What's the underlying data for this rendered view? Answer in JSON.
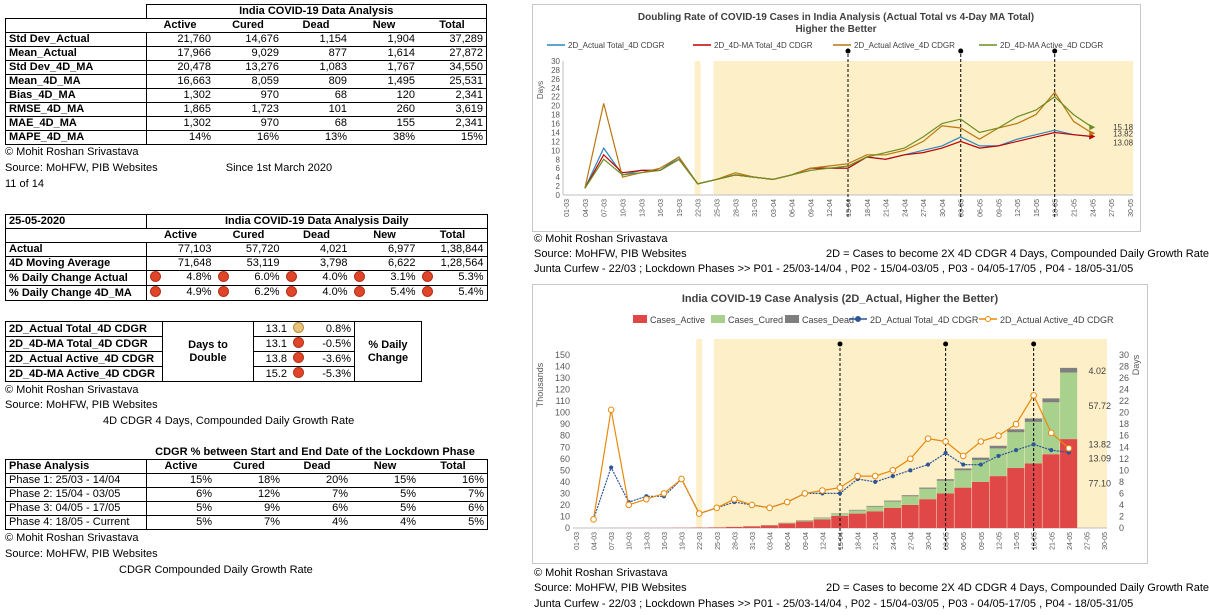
{
  "table1": {
    "title": "India COVID-19 Data Analysis",
    "headers": [
      "Active",
      "Cured",
      "Dead",
      "New",
      "Total"
    ],
    "rows": [
      {
        "label": "Std Dev_Actual",
        "values": [
          "21,760",
          "14,676",
          "1,154",
          "1,904",
          "37,289"
        ]
      },
      {
        "label": "Mean_Actual",
        "values": [
          "17,966",
          "9,029",
          "877",
          "1,614",
          "27,872"
        ]
      },
      {
        "label": "Std Dev_4D_MA",
        "values": [
          "20,478",
          "13,276",
          "1,083",
          "1,767",
          "34,550"
        ]
      },
      {
        "label": "Mean_4D_MA",
        "values": [
          "16,663",
          "8,059",
          "809",
          "1,495",
          "25,531"
        ]
      },
      {
        "label": "Bias_4D_MA",
        "values": [
          "1,302",
          "970",
          "68",
          "120",
          "2,341"
        ]
      },
      {
        "label": "RMSE_4D_MA",
        "values": [
          "1,865",
          "1,723",
          "101",
          "260",
          "3,619"
        ]
      },
      {
        "label": "MAE_4D_MA",
        "values": [
          "1,302",
          "970",
          "68",
          "155",
          "2,341"
        ]
      },
      {
        "label": "MAPE_4D_MA",
        "values": [
          "14%",
          "16%",
          "13%",
          "38%",
          "15%"
        ]
      }
    ],
    "credit": "© Mohit Roshan Srivastava",
    "source": "Source: MoHFW, PIB Websites",
    "since": "Since 1st March 2020",
    "page": "11 of 14"
  },
  "table2": {
    "date": "25-05-2020",
    "title": "India COVID-19 Data Analysis Daily",
    "headers": [
      "Active",
      "Cured",
      "Dead",
      "New",
      "Total"
    ],
    "rows": [
      {
        "label": "Actual",
        "values": [
          "77,103",
          "57,720",
          "4,021",
          "6,977",
          "1,38,844"
        ]
      },
      {
        "label": "4D Moving Average",
        "values": [
          "71,648",
          "53,119",
          "3,798",
          "6,622",
          "1,28,564"
        ]
      },
      {
        "label": "% Daily Change Actual",
        "values": [
          "4.8%",
          "6.0%",
          "4.0%",
          "3.1%",
          "5.3%"
        ]
      },
      {
        "label": "% Daily Change 4D_MA",
        "values": [
          "4.9%",
          "6.2%",
          "4.0%",
          "5.4%",
          "5.4%"
        ]
      }
    ]
  },
  "table3": {
    "rows": [
      {
        "label": "2D_Actual Total_4D CDGR",
        "value": "13.1",
        "change": "0.8%",
        "indicator": "tan"
      },
      {
        "label": "2D_4D-MA Total_4D CDGR",
        "value": "13.1",
        "change": "-0.5%",
        "indicator": "red"
      },
      {
        "label": "2D_Actual Active_4D CDGR",
        "value": "13.8",
        "change": "-3.6%",
        "indicator": "red"
      },
      {
        "label": "2D_4D-MA Active_4D CDGR",
        "value": "15.2",
        "change": "-5.3%",
        "indicator": "red"
      }
    ],
    "days_label_1": "Days to",
    "days_label_2": "Double",
    "change_label_1": "% Daily",
    "change_label_2": "Change",
    "credit": "© Mohit Roshan Srivastava",
    "source": "Source: MoHFW, PIB Websites",
    "note": "4D CDGR  4 Days, Compounded Daily Growth Rate"
  },
  "table4": {
    "title": "CDGR % between Start and End Date of the Lockdown Phase",
    "header_label": "Phase Analysis",
    "headers": [
      "Active",
      "Cured",
      "Dead",
      "New",
      "Total"
    ],
    "rows": [
      {
        "label": "Phase 1: 25/03 - 14/04",
        "values": [
          "15%",
          "18%",
          "20%",
          "15%",
          "16%"
        ]
      },
      {
        "label": "Phase 2: 15/04 - 03/05",
        "values": [
          "6%",
          "12%",
          "7%",
          "5%",
          "7%"
        ]
      },
      {
        "label": "Phase 3: 04/05 - 17/05",
        "values": [
          "5%",
          "9%",
          "6%",
          "5%",
          "6%"
        ]
      },
      {
        "label": "Phase 4: 18/05 - Current",
        "values": [
          "5%",
          "7%",
          "4%",
          "4%",
          "5%"
        ]
      }
    ],
    "credit": "© Mohit Roshan Srivastava",
    "source": "Source: MoHFW, PIB Websites",
    "note": "CDGR  Compounded Daily Growth Rate"
  },
  "chart1_captions": {
    "credit": "© Mohit Roshan Srivastava",
    "source": "Source: MoHFW, PIB Websites",
    "defs": "2D = Cases to become 2X    4D CDGR  4 Days, Compounded Daily Growth Rate",
    "phases": "Junta Curfew - 22/03 ; Lockdown Phases >> P01 - 25/03-14/04 , P02 - 15/04-03/05 , P03 - 04/05-17/05 , P04 - 18/05-31/05"
  },
  "chart2_captions": {
    "credit": "© Mohit Roshan Srivastava",
    "source": "Source: MoHFW, PIB Websites",
    "defs": "2D = Cases to become 2X    4D CDGR  4 Days, Compounded Daily Growth Rate",
    "phases": "Junta Curfew - 22/03 ; Lockdown Phases >> P01 - 25/03-14/04 , P02 - 15/04-03/05 , P03 - 04/05-17/05 , P04 - 18/05-31/05"
  },
  "colors": {
    "active": "#e04848",
    "cured": "#a9d18e",
    "dead": "#7f7f7f",
    "total_line": "#2f5597",
    "active_line": "#e8890c",
    "band": "#fdefc8",
    "blue": "#2e86c1",
    "red": "#c00000",
    "brown": "#b9770e",
    "green": "#6b8e23"
  },
  "chart_data": [
    {
      "type": "line",
      "title": "Doubling Rate of COVID-19 Cases in India Analysis (Actual Total vs 4-Day MA Total)",
      "subtitle": "Higher the Better",
      "ylabel": "Days",
      "ylim": [
        0,
        30
      ],
      "yticks": [
        0,
        2,
        4,
        6,
        8,
        10,
        12,
        14,
        16,
        18,
        20,
        22,
        24,
        26,
        28,
        30
      ],
      "x_tick_labels": [
        "01-03",
        "04-03",
        "07-03",
        "10-03",
        "13-03",
        "16-03",
        "19-03",
        "22-03",
        "25-03",
        "28-03",
        "31-03",
        "03-04",
        "06-04",
        "09-04",
        "12-04",
        "15-04",
        "18-04",
        "21-04",
        "24-04",
        "27-04",
        "30-04",
        "03-05",
        "06-05",
        "09-05",
        "12-05",
        "15-05",
        "18-05",
        "21-05",
        "24-05",
        "27-05",
        "30-05"
      ],
      "x": [
        "01-03",
        "04-03",
        "07-03",
        "10-03",
        "13-03",
        "16-03",
        "19-03",
        "22-03",
        "25-03",
        "28-03",
        "31-03",
        "03-04",
        "06-04",
        "09-04",
        "12-04",
        "15-04",
        "18-04",
        "21-04",
        "24-04",
        "27-04",
        "30-04",
        "03-05",
        "06-05",
        "09-05",
        "12-05",
        "15-05",
        "18-05",
        "21-05",
        "24-05"
      ],
      "series": [
        {
          "name": "2D_Actual Total_4D CDGR",
          "values": [
            null,
            1.5,
            10.5,
            4.5,
            5.5,
            5.5,
            8.5,
            2.5,
            3.5,
            4.5,
            4,
            3.5,
            4.5,
            6,
            6,
            6,
            8.5,
            8,
            9,
            10,
            11,
            13,
            11,
            11,
            12.5,
            13.5,
            14.5,
            13.5,
            13.1
          ]
        },
        {
          "name": "2D_4D-MA Total_4D CDGR",
          "values": [
            null,
            1.5,
            9,
            5,
            5.5,
            5.5,
            8,
            2.5,
            3.5,
            4.5,
            4,
            3.5,
            4.5,
            6,
            6,
            6,
            8.5,
            8,
            9,
            9.5,
            10.5,
            12,
            10.5,
            11,
            12,
            13,
            14,
            13.5,
            13.1
          ]
        },
        {
          "name": "2D_Actual Active_4D CDGR",
          "values": [
            null,
            1.5,
            20.5,
            4,
            5,
            6,
            8.5,
            2.5,
            3.5,
            5,
            4,
            3.5,
            4.5,
            6,
            6.5,
            7,
            9,
            9,
            10,
            12,
            15.5,
            15,
            12.5,
            15,
            16,
            18,
            23,
            16.5,
            13.82
          ]
        },
        {
          "name": "2D_4D-MA Active_4D CDGR",
          "values": [
            null,
            1.5,
            8,
            4.5,
            5,
            5.5,
            8,
            2.5,
            3.5,
            4.5,
            4,
            3.5,
            4.5,
            5.5,
            6,
            6.5,
            8.5,
            9.5,
            10.5,
            13,
            16,
            17,
            14,
            15,
            17.5,
            19,
            22,
            18,
            15.18
          ]
        }
      ],
      "end_labels": [
        "15.18",
        "13.82",
        "13.08"
      ],
      "phase_markers": [
        "15-04",
        "03-05",
        "18-05"
      ],
      "junta_curfew": "22-03",
      "lockdown_start": "25-03",
      "grid": false,
      "legend": "top"
    },
    {
      "type": "bar",
      "title": "India COVID-19 Case Analysis (2D_Actual, Higher the Better)",
      "ylabel": "Thousands",
      "y2label": "Days",
      "ylim": [
        0,
        150
      ],
      "y2lim": [
        0,
        30
      ],
      "yticks": [
        0,
        10,
        20,
        30,
        40,
        50,
        60,
        70,
        80,
        90,
        100,
        110,
        120,
        130,
        140,
        150
      ],
      "y2ticks": [
        0,
        2,
        4,
        6,
        8,
        10,
        12,
        14,
        16,
        18,
        20,
        22,
        24,
        26,
        28,
        30
      ],
      "x_tick_labels": [
        "01-03",
        "04-03",
        "07-03",
        "10-03",
        "13-03",
        "16-03",
        "19-03",
        "22-03",
        "25-03",
        "28-03",
        "31-03",
        "03-04",
        "06-04",
        "09-04",
        "12-04",
        "15-04",
        "18-04",
        "21-04",
        "24-04",
        "27-04",
        "30-04",
        "03-05",
        "06-05",
        "09-05",
        "12-05",
        "15-05",
        "18-05",
        "21-05",
        "24-05",
        "27-05",
        "30-05"
      ],
      "x": [
        "01-03",
        "04-03",
        "07-03",
        "10-03",
        "13-03",
        "16-03",
        "19-03",
        "22-03",
        "25-03",
        "28-03",
        "31-03",
        "03-04",
        "06-04",
        "09-04",
        "12-04",
        "15-04",
        "18-04",
        "21-04",
        "24-04",
        "27-04",
        "30-04",
        "03-05",
        "06-05",
        "09-05",
        "12-05",
        "15-05",
        "18-05",
        "21-05",
        "24-05"
      ],
      "series": [
        {
          "name": "Cases_Active",
          "axis": "left",
          "values": [
            0,
            0,
            0.03,
            0.05,
            0.08,
            0.1,
            0.2,
            0.35,
            0.5,
            0.9,
            1.4,
            2.2,
            4,
            5.7,
            7.5,
            10.5,
            12.5,
            14.5,
            17.5,
            20,
            25,
            30,
            35,
            40,
            45,
            52,
            56,
            64,
            77.1
          ]
        },
        {
          "name": "Cases_Cured",
          "axis": "left",
          "values": [
            0,
            0,
            0,
            0,
            0,
            0.01,
            0.02,
            0.03,
            0.04,
            0.08,
            0.15,
            0.3,
            0.5,
            0.8,
            1.2,
            1.7,
            2.7,
            4,
            5.5,
            7.5,
            9,
            11,
            15,
            19,
            24,
            31,
            36,
            45,
            57.72
          ]
        },
        {
          "name": "Cases_Dead",
          "axis": "left",
          "values": [
            0,
            0,
            0,
            0,
            0,
            0,
            0,
            0.01,
            0.01,
            0.02,
            0.04,
            0.07,
            0.15,
            0.25,
            0.35,
            0.4,
            0.55,
            0.65,
            0.75,
            0.9,
            1.05,
            1.3,
            1.65,
            2,
            2.3,
            2.6,
            3,
            3.4,
            4.02
          ]
        },
        {
          "name": "2D_Actual Total_4D CDGR",
          "axis": "right",
          "values": [
            null,
            1.5,
            10.5,
            4.5,
            5.5,
            5.5,
            8.5,
            2.5,
            3.5,
            4.5,
            4,
            3.5,
            4.5,
            6,
            6,
            6,
            8.5,
            8,
            9,
            10,
            11,
            13,
            11,
            11,
            12.5,
            13.5,
            14.5,
            13.5,
            13.09
          ]
        },
        {
          "name": "2D_Actual Active_4D CDGR",
          "axis": "right",
          "values": [
            null,
            1.5,
            20.5,
            4,
            5,
            6,
            8.5,
            2.5,
            3.5,
            5,
            4,
            3.5,
            4.5,
            6,
            6.5,
            7,
            9,
            9,
            10,
            12,
            15.5,
            15,
            12.5,
            15,
            16,
            18,
            23,
            16.5,
            13.82
          ]
        }
      ],
      "end_labels": [
        "4.02",
        "57.72",
        "13.82",
        "13.09",
        "77.10"
      ],
      "phase_markers": [
        "15-04",
        "03-05",
        "18-05"
      ],
      "grid": false,
      "legend": "top"
    }
  ]
}
